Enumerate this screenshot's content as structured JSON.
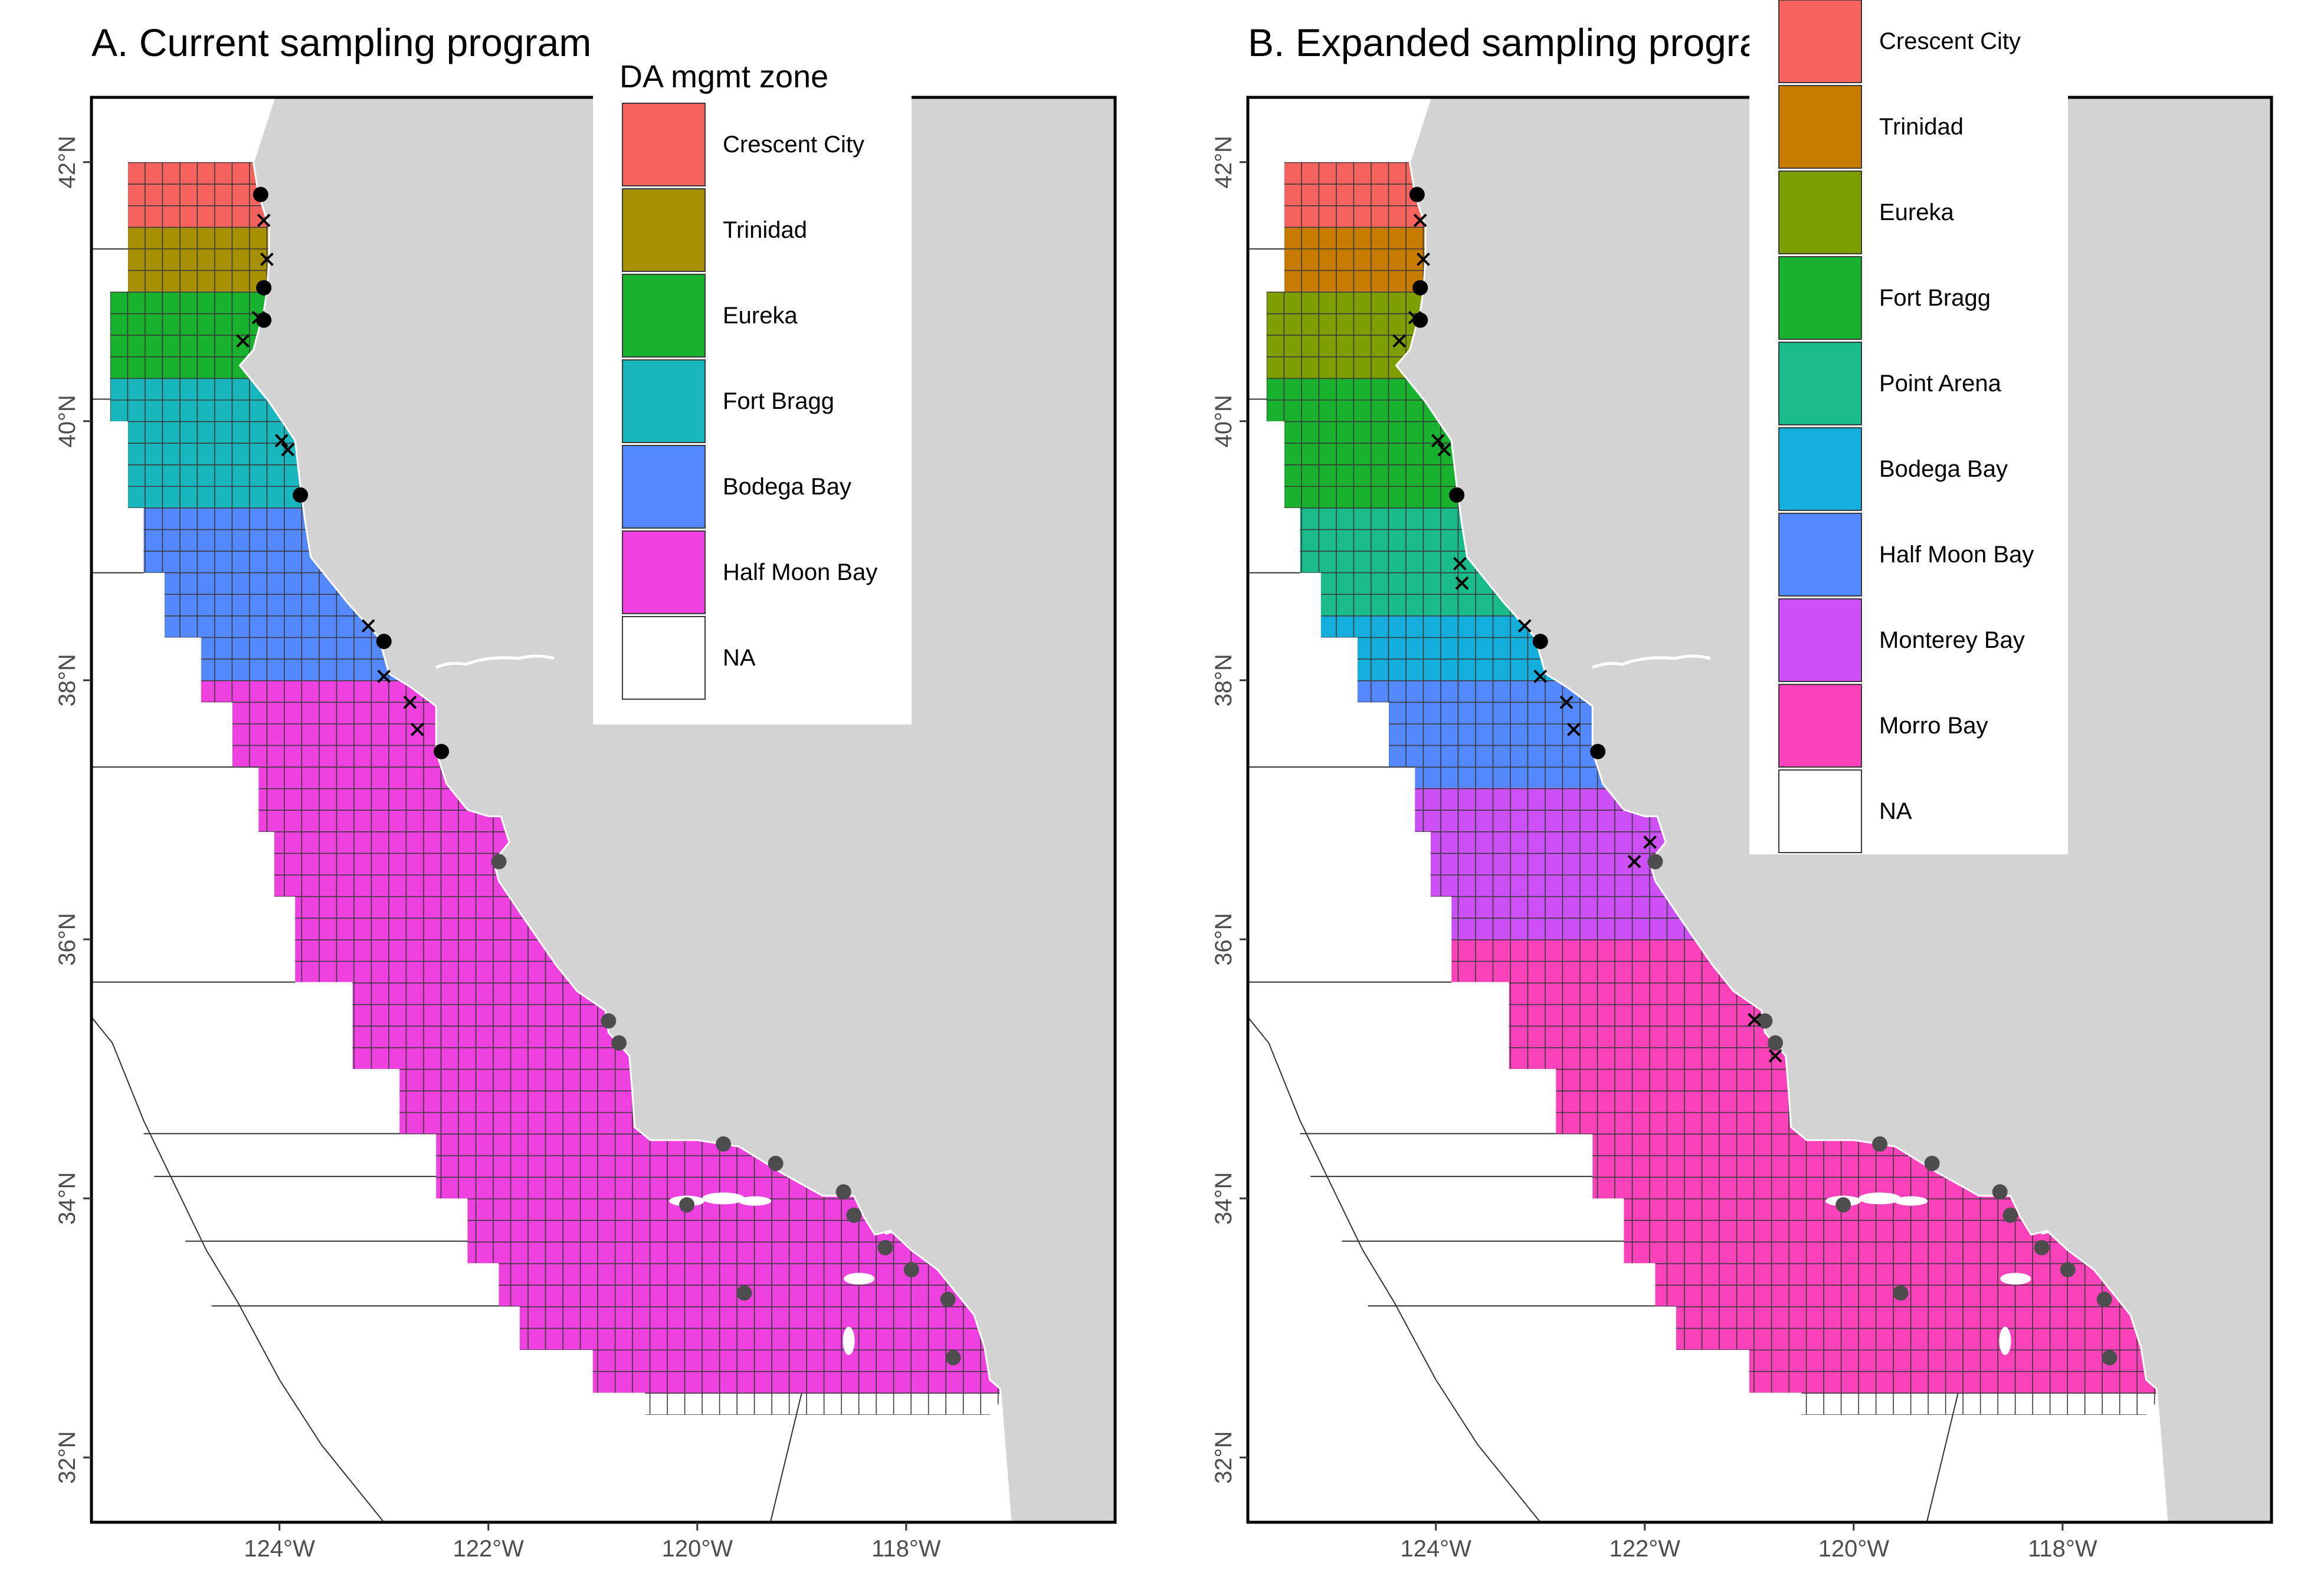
{
  "figure": {
    "panels": [
      {
        "id": "A",
        "title": "A. Current sampling program",
        "legend_title": "DA mgmt zone",
        "zones": [
          "Crescent City",
          "Trinidad",
          "Eureka",
          "Fort Bragg",
          "Bodega Bay",
          "Half Moon Bay",
          "NA"
        ],
        "colors": [
          "#f6635f",
          "#a79102",
          "#19b22e",
          "#18b6bd",
          "#5388ff",
          "#ef41e0",
          "#ffffff"
        ],
        "zone_lat_ranges": [
          {
            "zone": "Crescent City",
            "lat": [
              41.5,
              42.0
            ]
          },
          {
            "zone": "Trinidad",
            "lat": [
              41.0,
              41.5
            ]
          },
          {
            "zone": "Eureka",
            "lat": [
              40.33,
              41.0
            ]
          },
          {
            "zone": "Fort Bragg",
            "lat": [
              39.33,
              40.33
            ]
          },
          {
            "zone": "Bodega Bay",
            "lat": [
              38.0,
              39.33
            ]
          },
          {
            "zone": "Half Moon Bay",
            "lat": [
              32.5,
              38.0
            ]
          }
        ],
        "black_dots": [
          [
            -124.18,
            41.75
          ],
          [
            -124.15,
            41.03
          ],
          [
            -124.15,
            40.78
          ],
          [
            -123.8,
            39.43
          ],
          [
            -123.0,
            38.3
          ],
          [
            -122.45,
            37.45
          ]
        ],
        "crosses": [
          [
            -124.15,
            41.55
          ],
          [
            -124.12,
            41.25
          ],
          [
            -124.2,
            40.8
          ],
          [
            -124.35,
            40.62
          ],
          [
            -123.98,
            39.85
          ],
          [
            -123.92,
            39.78
          ],
          [
            -123.15,
            38.42
          ],
          [
            -123.0,
            38.03
          ],
          [
            -122.75,
            37.83
          ],
          [
            -122.68,
            37.62
          ]
        ],
        "grey_dots": [
          [
            -121.9,
            36.6
          ],
          [
            -120.85,
            35.37
          ],
          [
            -120.75,
            35.2
          ],
          [
            -119.75,
            34.42
          ],
          [
            -119.25,
            34.27
          ],
          [
            -118.6,
            34.05
          ],
          [
            -118.5,
            33.87
          ],
          [
            -118.2,
            33.62
          ],
          [
            -117.95,
            33.45
          ],
          [
            -117.6,
            33.22
          ],
          [
            -117.55,
            32.77
          ],
          [
            -119.55,
            33.27
          ],
          [
            -120.1,
            33.95
          ]
        ]
      },
      {
        "id": "B",
        "title": "B. Expanded sampling program",
        "legend_title": "",
        "zones": [
          "Crescent City",
          "Trinidad",
          "Eureka",
          "Fort Bragg",
          "Point Arena",
          "Bodega Bay",
          "Half Moon Bay",
          "Monterey Bay",
          "Morro Bay",
          "NA"
        ],
        "colors": [
          "#f6635f",
          "#c77c00",
          "#7da000",
          "#19b22e",
          "#1abb8a",
          "#13aedc",
          "#5388ff",
          "#cd50f6",
          "#fb42bb",
          "#ffffff"
        ],
        "zone_lat_ranges": [
          {
            "zone": "Crescent City",
            "lat": [
              41.5,
              42.0
            ]
          },
          {
            "zone": "Trinidad",
            "lat": [
              41.0,
              41.5
            ]
          },
          {
            "zone": "Eureka",
            "lat": [
              40.33,
              41.0
            ]
          },
          {
            "zone": "Fort Bragg",
            "lat": [
              39.33,
              40.33
            ]
          },
          {
            "zone": "Point Arena",
            "lat": [
              38.5,
              39.33
            ]
          },
          {
            "zone": "Bodega Bay",
            "lat": [
              38.0,
              38.5
            ]
          },
          {
            "zone": "Half Moon Bay",
            "lat": [
              37.17,
              38.0
            ]
          },
          {
            "zone": "Monterey Bay",
            "lat": [
              36.0,
              37.17
            ]
          },
          {
            "zone": "Morro Bay",
            "lat": [
              32.5,
              36.0
            ]
          }
        ],
        "black_dots": [
          [
            -124.18,
            41.75
          ],
          [
            -124.15,
            41.03
          ],
          [
            -124.15,
            40.78
          ],
          [
            -123.8,
            39.43
          ],
          [
            -123.0,
            38.3
          ],
          [
            -122.45,
            37.45
          ]
        ],
        "crosses": [
          [
            -124.15,
            41.55
          ],
          [
            -124.12,
            41.25
          ],
          [
            -124.2,
            40.8
          ],
          [
            -124.35,
            40.62
          ],
          [
            -123.98,
            39.85
          ],
          [
            -123.92,
            39.78
          ],
          [
            -123.77,
            38.9
          ],
          [
            -123.75,
            38.75
          ],
          [
            -123.15,
            38.42
          ],
          [
            -123.0,
            38.03
          ],
          [
            -122.75,
            37.83
          ],
          [
            -122.68,
            37.62
          ],
          [
            -121.95,
            36.75
          ],
          [
            -122.1,
            36.6
          ],
          [
            -120.95,
            35.38
          ],
          [
            -120.75,
            35.1
          ]
        ],
        "grey_dots": [
          [
            -121.9,
            36.6
          ],
          [
            -120.85,
            35.37
          ],
          [
            -120.75,
            35.2
          ],
          [
            -119.75,
            34.42
          ],
          [
            -119.25,
            34.27
          ],
          [
            -118.6,
            34.05
          ],
          [
            -118.5,
            33.87
          ],
          [
            -118.2,
            33.62
          ],
          [
            -117.95,
            33.45
          ],
          [
            -117.6,
            33.22
          ],
          [
            -117.55,
            32.77
          ],
          [
            -119.55,
            33.27
          ],
          [
            -120.1,
            33.95
          ]
        ]
      }
    ],
    "x_ticks": [
      -124,
      -122,
      -120,
      -118
    ],
    "y_ticks": [
      32,
      34,
      36,
      38,
      40,
      42
    ],
    "x_tick_labels": [
      "124°W",
      "122°W",
      "120°W",
      "118°W"
    ],
    "y_tick_labels": [
      "32°N",
      "34°N",
      "36°N",
      "38°N",
      "40°N",
      "42°N"
    ],
    "xlim": [
      -125.8,
      -116.0
    ],
    "ylim": [
      31.5,
      42.5
    ],
    "land_color": "#d3d3d3",
    "cell_stroke": "#3a3a3a",
    "black_dot_color": "#000000",
    "grey_dot_color": "#4d4d4d"
  }
}
